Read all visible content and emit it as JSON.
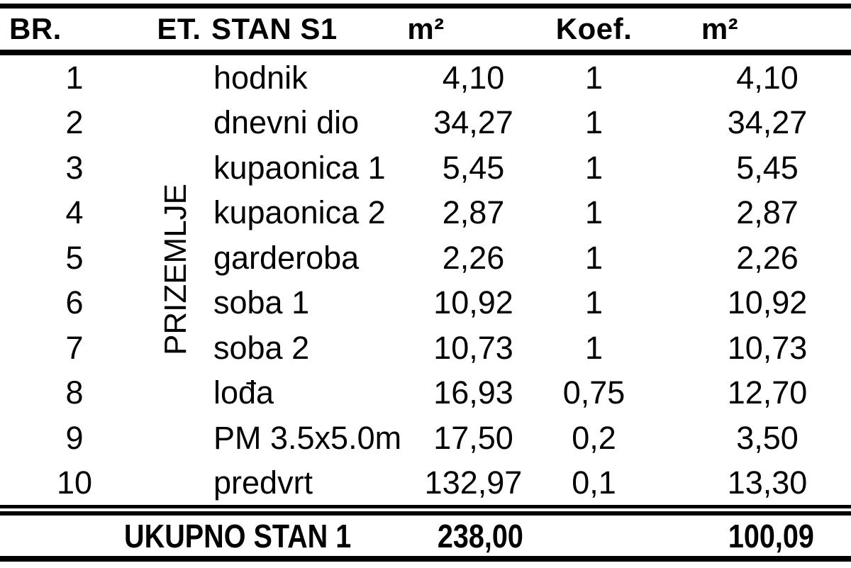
{
  "table": {
    "columns": {
      "br": "BR.",
      "et": "ET.",
      "stan": "STAN S1",
      "m2": "m²",
      "koef": "Koef.",
      "m2_reduced": "m²"
    },
    "floor_label": "PRIZEMLJE",
    "rows": [
      {
        "br": "1",
        "name": "hodnik",
        "area": "4,10",
        "koef": "1",
        "net": "4,10"
      },
      {
        "br": "2",
        "name": "dnevni dio",
        "area": "34,27",
        "koef": "1",
        "net": "34,27"
      },
      {
        "br": "3",
        "name": "kupaonica 1",
        "area": "5,45",
        "koef": "1",
        "net": "5,45"
      },
      {
        "br": "4",
        "name": "kupaonica 2",
        "area": "2,87",
        "koef": "1",
        "net": "2,87"
      },
      {
        "br": "5",
        "name": "garderoba",
        "area": "2,26",
        "koef": "1",
        "net": "2,26"
      },
      {
        "br": "6",
        "name": "soba 1",
        "area": "10,92",
        "koef": "1",
        "net": "10,92"
      },
      {
        "br": "7",
        "name": "soba 2",
        "area": "10,73",
        "koef": "1",
        "net": "10,73"
      },
      {
        "br": "8",
        "name": "lođa",
        "area": "16,93",
        "koef": "0,75",
        "net": "12,70"
      },
      {
        "br": "9",
        "name": "PM 3.5x5.0m",
        "area": "17,50",
        "koef": "0,2",
        "net": "3,50"
      },
      {
        "br": "10",
        "name": "predvrt",
        "area": "132,97",
        "koef": "0,1",
        "net": "13,30"
      }
    ],
    "footer": {
      "label": "UKUPNO STAN 1",
      "area": "238,00",
      "koef": "",
      "net": "100,09"
    }
  }
}
